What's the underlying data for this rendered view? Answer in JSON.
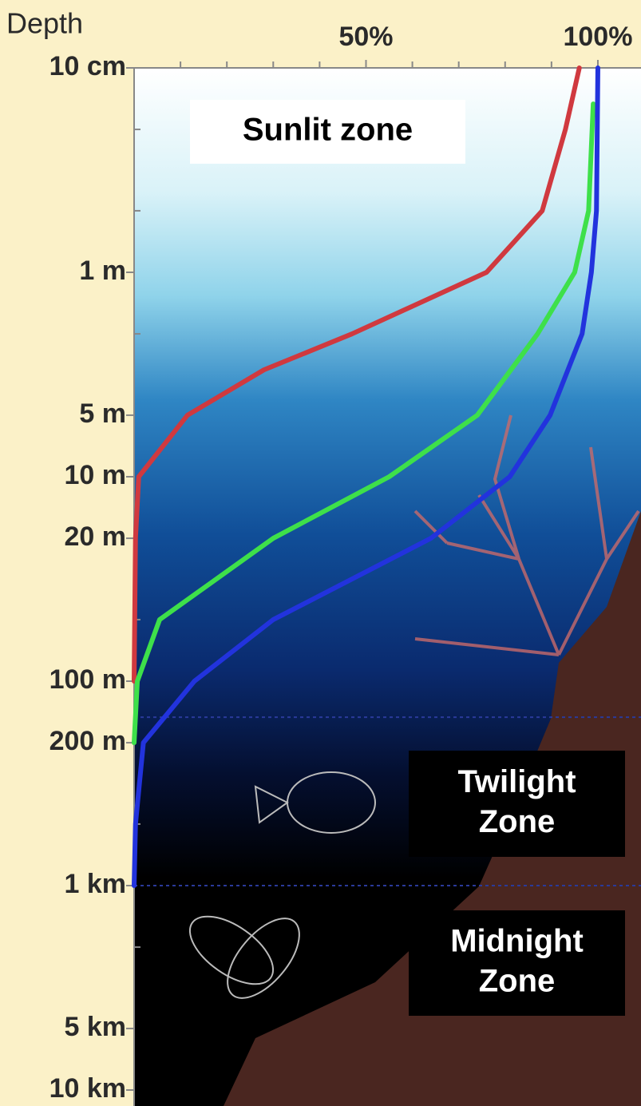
{
  "chart_data": {
    "type": "line",
    "y_axis_label": "Depth",
    "xlim": [
      0,
      109.3
    ],
    "xticks": [
      {
        "value": 50,
        "label": "50%"
      },
      {
        "value": 100,
        "label": "100%"
      }
    ],
    "xminorticks": [
      10,
      20,
      30,
      40,
      60,
      70,
      80,
      90
    ],
    "ylim": [
      0.1,
      10000
    ],
    "ylog": true,
    "yreversed": true,
    "yticks": [
      {
        "value": 0.1,
        "label": "10 cm"
      },
      {
        "value": 1,
        "label": "1 m"
      },
      {
        "value": 5,
        "label": "5 m"
      },
      {
        "value": 10,
        "label": "10 m"
      },
      {
        "value": 20,
        "label": "20 m"
      },
      {
        "value": 100,
        "label": "100 m"
      },
      {
        "value": 200,
        "label": "200 m"
      },
      {
        "value": 1000,
        "label": "1 km"
      },
      {
        "value": 5000,
        "label": "5 km"
      },
      {
        "value": 10000,
        "label": "10 km"
      }
    ],
    "yminorticks": [
      0.2,
      0.5,
      2,
      50,
      500,
      2000
    ],
    "zone_boundaries": [
      150,
      1000
    ],
    "series": [
      {
        "color": "#d0393f",
        "depth": [
          0.1,
          0.2,
          0.5,
          1,
          2,
          3,
          5,
          10,
          20,
          100
        ],
        "values": [
          96,
          93,
          88,
          76,
          47,
          28,
          11.5,
          1,
          0.3,
          0
        ]
      },
      {
        "color": "#3ee04a",
        "depth": [
          0.15,
          0.5,
          1,
          2,
          5,
          10,
          20,
          50,
          100,
          200
        ],
        "values": [
          99,
          98,
          95,
          87,
          74,
          55,
          30,
          5.5,
          0.7,
          0
        ]
      },
      {
        "color": "#2233dd",
        "depth": [
          0.1,
          0.5,
          1,
          2,
          5,
          10,
          20,
          50,
          100,
          200,
          500,
          1000
        ],
        "values": [
          100,
          99.7,
          98.6,
          96.6,
          89.7,
          81,
          64,
          30,
          13,
          2,
          0.3,
          0
        ]
      }
    ],
    "annotations": [
      {
        "text": [
          "Sunlit zone"
        ]
      },
      {
        "text": [
          "Twilight",
          "Zone"
        ]
      },
      {
        "text": [
          "Midnight",
          "Zone"
        ]
      }
    ]
  }
}
